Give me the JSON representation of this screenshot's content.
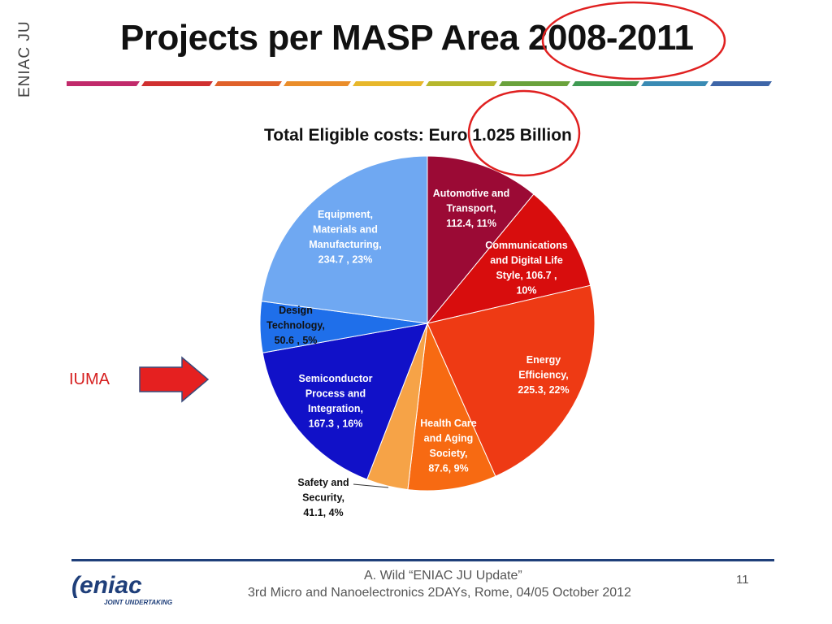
{
  "slide": {
    "side_label": "ENIAC JU",
    "title": "Projects per MASP Area 2008-2011",
    "subtitle": "Total Eligible costs: Euro 1.025 Billion",
    "annotation": "IUMA",
    "footer_line1": "A. Wild “ENIAC JU Update”",
    "footer_line2": "3rd Micro and Nanoelectronics 2DAYs, Rome, 04/05 October 2012",
    "page_number": "11",
    "logo_text": "eniac",
    "logo_subtext": "JOINT UNDERTAKING"
  },
  "colors": {
    "highlight_circle": "#e02020",
    "arrow": "#e52020",
    "footer_rule": "#1f3f7a",
    "logo": "#1f3f7a"
  },
  "chart_data": {
    "type": "pie",
    "title": "Total Eligible costs: Euro 1.025 Billion",
    "start": "12 o'clock, clockwise",
    "slices": [
      {
        "label_lines": [
          "Automotive and",
          "Transport,",
          "112.4, 11%"
        ],
        "value": 112.4,
        "percent": 11,
        "color": "#9b0a35",
        "text_color": "#ffffff"
      },
      {
        "label_lines": [
          "Communications",
          "and Digital Life",
          "Style,  106.7 ,",
          "10%"
        ],
        "value": 106.7,
        "percent": 10,
        "color": "#d80d0d",
        "text_color": "#ffffff"
      },
      {
        "label_lines": [
          "Energy",
          "Efficiency,",
          "225.3, 22%"
        ],
        "value": 225.3,
        "percent": 22,
        "color": "#ee3a14",
        "text_color": "#ffffff"
      },
      {
        "label_lines": [
          "Health Care",
          "and Aging",
          "Society,",
          "87.6, 9%"
        ],
        "value": 87.6,
        "percent": 9,
        "color": "#f76a12",
        "text_color": "#ffffff"
      },
      {
        "label_lines": [
          "Safety and",
          "Security,",
          "41.1, 4%"
        ],
        "value": 41.1,
        "percent": 4,
        "color": "#f6a347",
        "text_color": "#111111"
      },
      {
        "label_lines": [
          "Semiconductor",
          "Process and",
          "Integration,",
          "167.3 , 16%"
        ],
        "value": 167.3,
        "percent": 16,
        "color": "#1111c8",
        "text_color": "#ffffff"
      },
      {
        "label_lines": [
          "Design",
          "Technology,",
          "50.6 , 5%"
        ],
        "value": 50.6,
        "percent": 5,
        "color": "#1f6fea",
        "text_color": "#111111"
      },
      {
        "label_lines": [
          "Equipment,",
          "Materials and",
          "Manufacturing,",
          "234.7 , 23%"
        ],
        "value": 234.7,
        "percent": 23,
        "color": "#6fa8f2",
        "text_color": "#ffffff"
      }
    ]
  }
}
